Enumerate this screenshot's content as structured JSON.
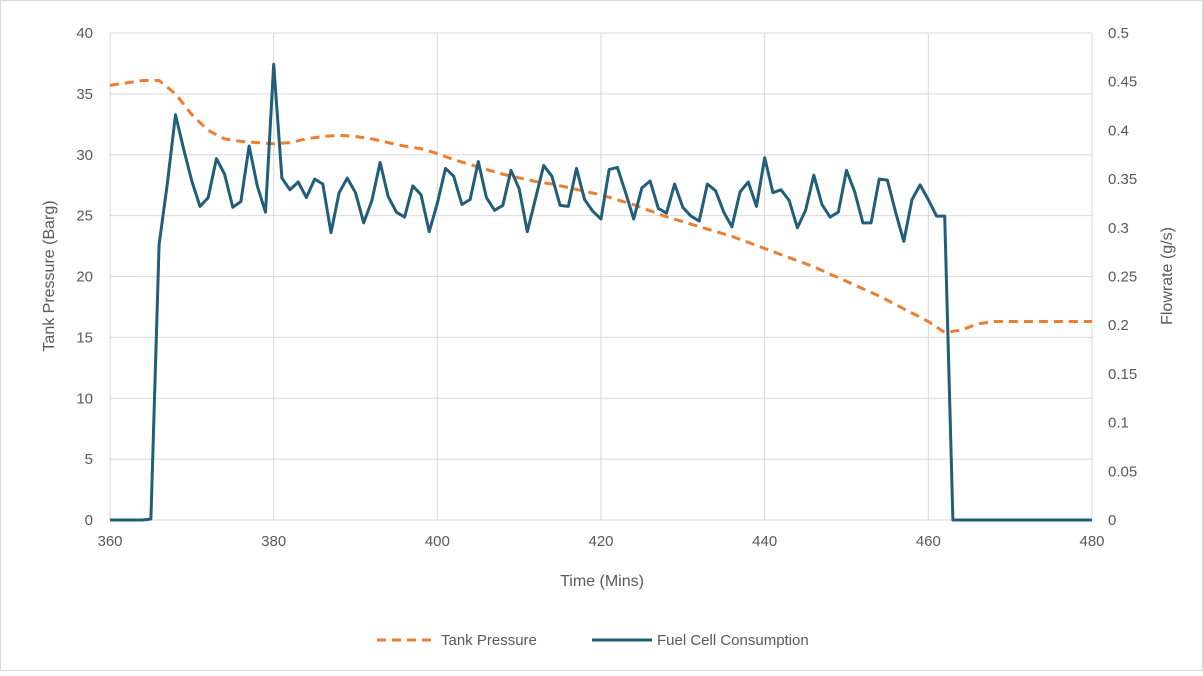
{
  "chart_data": {
    "type": "line",
    "xlabel": "Time (Mins)",
    "ylabel_left": "Tank Pressure (Barg)",
    "ylabel_right": "Flowrate (g/s)",
    "xlim": [
      360,
      480
    ],
    "ylim_left": [
      0,
      40
    ],
    "ylim_right": [
      0,
      0.5
    ],
    "x_ticks": [
      "360",
      "380",
      "400",
      "420",
      "440",
      "460",
      "480"
    ],
    "y_left_ticks": [
      "0",
      "5",
      "10",
      "15",
      "20",
      "25",
      "30",
      "35",
      "40"
    ],
    "y_right_ticks": [
      "0",
      "0.05",
      "0.1",
      "0.15",
      "0.2",
      "0.25",
      "0.3",
      "0.35",
      "0.4",
      "0.45",
      "0.5"
    ],
    "grid": true,
    "legend_position": "bottom",
    "series": [
      {
        "name": "Tank Pressure",
        "axis": "left",
        "color": "#ED7D31",
        "dash": "dashed",
        "points": [
          [
            360,
            35.7
          ],
          [
            362,
            35.9
          ],
          [
            364,
            36.1
          ],
          [
            366,
            36.1
          ],
          [
            368,
            35.0
          ],
          [
            370,
            33.3
          ],
          [
            372,
            32.0
          ],
          [
            374,
            31.3
          ],
          [
            376,
            31.1
          ],
          [
            378,
            31.0
          ],
          [
            380,
            30.9
          ],
          [
            382,
            31.0
          ],
          [
            384,
            31.3
          ],
          [
            386,
            31.5
          ],
          [
            388,
            31.6
          ],
          [
            390,
            31.5
          ],
          [
            392,
            31.3
          ],
          [
            394,
            31.0
          ],
          [
            396,
            30.7
          ],
          [
            398,
            30.5
          ],
          [
            400,
            30.1
          ],
          [
            402,
            29.6
          ],
          [
            404,
            29.2
          ],
          [
            406,
            28.8
          ],
          [
            408,
            28.4
          ],
          [
            410,
            28.1
          ],
          [
            412,
            27.8
          ],
          [
            414,
            27.6
          ],
          [
            416,
            27.3
          ],
          [
            418,
            27.0
          ],
          [
            420,
            26.7
          ],
          [
            422,
            26.3
          ],
          [
            424,
            25.9
          ],
          [
            426,
            25.4
          ],
          [
            428,
            24.9
          ],
          [
            430,
            24.5
          ],
          [
            432,
            24.1
          ],
          [
            434,
            23.7
          ],
          [
            436,
            23.3
          ],
          [
            438,
            22.8
          ],
          [
            440,
            22.3
          ],
          [
            442,
            21.8
          ],
          [
            444,
            21.3
          ],
          [
            446,
            20.8
          ],
          [
            448,
            20.2
          ],
          [
            450,
            19.6
          ],
          [
            452,
            19.0
          ],
          [
            454,
            18.4
          ],
          [
            456,
            17.7
          ],
          [
            458,
            17.0
          ],
          [
            460,
            16.3
          ],
          [
            462,
            15.4
          ],
          [
            464,
            15.6
          ],
          [
            466,
            16.1
          ],
          [
            468,
            16.3
          ],
          [
            472,
            16.3
          ],
          [
            476,
            16.3
          ],
          [
            480,
            16.3
          ]
        ]
      },
      {
        "name": "Fuel Cell Consumption",
        "axis": "right",
        "color": "#215E79",
        "dash": "solid",
        "points": [
          [
            360,
            0.0
          ],
          [
            361,
            0.0
          ],
          [
            362,
            0.0
          ],
          [
            363,
            0.0
          ],
          [
            364,
            0.0
          ],
          [
            365,
            0.001
          ],
          [
            366,
            0.283
          ],
          [
            367,
            0.345
          ],
          [
            368,
            0.416
          ],
          [
            369,
            0.381
          ],
          [
            370,
            0.348
          ],
          [
            371,
            0.322
          ],
          [
            372,
            0.331
          ],
          [
            373,
            0.371
          ],
          [
            374,
            0.355
          ],
          [
            375,
            0.321
          ],
          [
            376,
            0.327
          ],
          [
            377,
            0.384
          ],
          [
            378,
            0.343
          ],
          [
            379,
            0.316
          ],
          [
            380,
            0.468
          ],
          [
            381,
            0.351
          ],
          [
            382,
            0.339
          ],
          [
            383,
            0.347
          ],
          [
            384,
            0.331
          ],
          [
            385,
            0.35
          ],
          [
            386,
            0.345
          ],
          [
            387,
            0.295
          ],
          [
            388,
            0.336
          ],
          [
            389,
            0.351
          ],
          [
            390,
            0.336
          ],
          [
            391,
            0.305
          ],
          [
            392,
            0.328
          ],
          [
            393,
            0.367
          ],
          [
            394,
            0.332
          ],
          [
            395,
            0.316
          ],
          [
            396,
            0.311
          ],
          [
            397,
            0.343
          ],
          [
            398,
            0.334
          ],
          [
            399,
            0.296
          ],
          [
            400,
            0.325
          ],
          [
            401,
            0.361
          ],
          [
            402,
            0.353
          ],
          [
            403,
            0.324
          ],
          [
            404,
            0.329
          ],
          [
            405,
            0.368
          ],
          [
            406,
            0.331
          ],
          [
            407,
            0.318
          ],
          [
            408,
            0.323
          ],
          [
            409,
            0.359
          ],
          [
            410,
            0.34
          ],
          [
            411,
            0.296
          ],
          [
            412,
            0.33
          ],
          [
            413,
            0.364
          ],
          [
            414,
            0.353
          ],
          [
            415,
            0.323
          ],
          [
            416,
            0.322
          ],
          [
            417,
            0.361
          ],
          [
            418,
            0.329
          ],
          [
            419,
            0.317
          ],
          [
            420,
            0.309
          ],
          [
            421,
            0.36
          ],
          [
            422,
            0.362
          ],
          [
            423,
            0.336
          ],
          [
            424,
            0.309
          ],
          [
            425,
            0.341
          ],
          [
            426,
            0.348
          ],
          [
            427,
            0.32
          ],
          [
            428,
            0.315
          ],
          [
            429,
            0.345
          ],
          [
            430,
            0.321
          ],
          [
            431,
            0.312
          ],
          [
            432,
            0.307
          ],
          [
            433,
            0.345
          ],
          [
            434,
            0.338
          ],
          [
            435,
            0.316
          ],
          [
            436,
            0.301
          ],
          [
            437,
            0.337
          ],
          [
            438,
            0.347
          ],
          [
            439,
            0.322
          ],
          [
            440,
            0.372
          ],
          [
            441,
            0.336
          ],
          [
            442,
            0.339
          ],
          [
            443,
            0.328
          ],
          [
            444,
            0.3
          ],
          [
            445,
            0.318
          ],
          [
            446,
            0.354
          ],
          [
            447,
            0.324
          ],
          [
            448,
            0.311
          ],
          [
            449,
            0.316
          ],
          [
            450,
            0.359
          ],
          [
            451,
            0.337
          ],
          [
            452,
            0.305
          ],
          [
            453,
            0.305
          ],
          [
            454,
            0.35
          ],
          [
            455,
            0.349
          ],
          [
            456,
            0.316
          ],
          [
            457,
            0.286
          ],
          [
            458,
            0.329
          ],
          [
            459,
            0.344
          ],
          [
            460,
            0.329
          ],
          [
            461,
            0.312
          ],
          [
            462,
            0.312
          ],
          [
            463,
            0.0
          ],
          [
            464,
            0.0
          ],
          [
            470,
            0.0
          ],
          [
            480,
            0.0
          ]
        ]
      }
    ]
  }
}
